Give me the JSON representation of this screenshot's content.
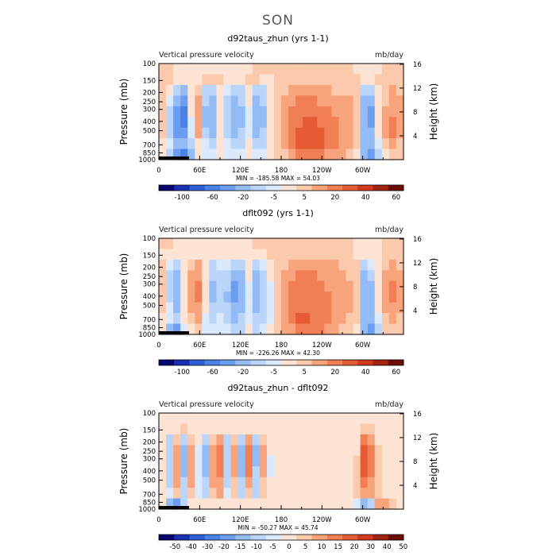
{
  "figure": {
    "super_title": "SON"
  },
  "chart_data": [
    {
      "type": "heatmap",
      "title": "d92taus_zhun (yrs 1-1)",
      "left_string": "Vertical pressure velocity",
      "right_string": "mb/day",
      "ylabel": "Pressure (mb)",
      "y2label": "Height (km)",
      "y_ticks": [
        100,
        150,
        200,
        250,
        300,
        400,
        500,
        700,
        850,
        1000
      ],
      "y2_ticks": [
        16,
        12,
        8,
        4
      ],
      "x_ticks": [
        "0",
        "60E",
        "120E",
        "180",
        "120W",
        "60W"
      ],
      "stats": "MIN = -185.58   MAX =  54.03",
      "colorbar_labels": [
        "-100",
        "-60",
        "-20",
        "-5",
        "5",
        "20",
        "40",
        "60"
      ],
      "colorbar_colors": [
        "#06066e",
        "#1b2fb4",
        "#2f5fd6",
        "#4b80e6",
        "#6b9ef0",
        "#93bcf6",
        "#b9d6fa",
        "#dbe9fc",
        "#fde3d3",
        "#fbc9ab",
        "#f7a47c",
        "#f17f55",
        "#e65a36",
        "#d13a1f",
        "#a3220f",
        "#6e0d05"
      ],
      "cells": [
        [
          1,
          1,
          0,
          0,
          0,
          0,
          0,
          0,
          0,
          0,
          0,
          0,
          0,
          1,
          1,
          1,
          1,
          1,
          1,
          1,
          1,
          1,
          1,
          1,
          1,
          1,
          1,
          0,
          0,
          0,
          0,
          1,
          1,
          1
        ],
        [
          1,
          1,
          0,
          0,
          0,
          0,
          1,
          1,
          1,
          0,
          0,
          0,
          1,
          1,
          0,
          0,
          1,
          1,
          1,
          1,
          1,
          1,
          1,
          1,
          1,
          1,
          1,
          1,
          0,
          0,
          1,
          1,
          1,
          1
        ],
        [
          1,
          0,
          -2,
          -3,
          0,
          1,
          -2,
          -2,
          0,
          -1,
          -2,
          -2,
          0,
          -2,
          -2,
          0,
          1,
          1,
          2,
          2,
          2,
          2,
          2,
          2,
          1,
          1,
          1,
          1,
          -2,
          -2,
          0,
          1,
          2,
          1
        ],
        [
          1,
          -1,
          -3,
          -4,
          0,
          2,
          -2,
          -3,
          0,
          -2,
          -3,
          -2,
          0,
          -3,
          -2,
          0,
          1,
          2,
          2,
          3,
          3,
          3,
          2,
          2,
          2,
          2,
          2,
          1,
          -3,
          -3,
          0,
          1,
          2,
          2
        ],
        [
          1,
          -2,
          -4,
          -5,
          0,
          2,
          -3,
          -3,
          0,
          -2,
          -3,
          -3,
          -1,
          -3,
          -3,
          0,
          1,
          2,
          3,
          3,
          3,
          3,
          3,
          3,
          2,
          2,
          2,
          1,
          -3,
          -4,
          0,
          2,
          2,
          2
        ],
        [
          1,
          -2,
          -4,
          -5,
          -1,
          2,
          -3,
          -3,
          0,
          -2,
          -3,
          -3,
          -1,
          -3,
          -3,
          0,
          1,
          2,
          3,
          3,
          4,
          4,
          3,
          3,
          3,
          2,
          2,
          1,
          -3,
          -4,
          0,
          2,
          3,
          2
        ],
        [
          1,
          -2,
          -4,
          -4,
          -1,
          2,
          -2,
          -3,
          0,
          -2,
          -3,
          -2,
          -1,
          -3,
          -2,
          0,
          1,
          2,
          3,
          4,
          4,
          4,
          4,
          3,
          3,
          2,
          2,
          1,
          -3,
          -3,
          0,
          2,
          3,
          2
        ],
        [
          0,
          -1,
          -3,
          -3,
          -2,
          0,
          -1,
          -2,
          0,
          -1,
          -2,
          -2,
          0,
          -2,
          -2,
          0,
          1,
          2,
          3,
          4,
          4,
          4,
          4,
          3,
          3,
          2,
          2,
          1,
          -3,
          -3,
          -1,
          1,
          2,
          1
        ],
        [
          0,
          -2,
          -4,
          -5,
          -3,
          0,
          -1,
          -1,
          0,
          -1,
          -1,
          -1,
          0,
          -1,
          -1,
          0,
          1,
          1,
          2,
          3,
          3,
          3,
          3,
          2,
          2,
          2,
          1,
          0,
          -3,
          -4,
          -2,
          0,
          1,
          1
        ]
      ]
    },
    {
      "type": "heatmap",
      "title": "dflt092 (yrs 1-1)",
      "left_string": "Vertical pressure velocity",
      "right_string": "mb/day",
      "ylabel": "Pressure (mb)",
      "y2label": "Height (km)",
      "y_ticks": [
        100,
        150,
        200,
        250,
        300,
        400,
        500,
        700,
        850,
        1000
      ],
      "y2_ticks": [
        16,
        12,
        8,
        4
      ],
      "x_ticks": [
        "0",
        "60E",
        "120E",
        "180",
        "120W",
        "60W"
      ],
      "stats": "MIN = -226.26   MAX =  42.30",
      "colorbar_labels": [
        "-100",
        "-60",
        "-20",
        "-5",
        "5",
        "20",
        "40",
        "60"
      ],
      "colorbar_colors": [
        "#06066e",
        "#1b2fb4",
        "#2f5fd6",
        "#4b80e6",
        "#6b9ef0",
        "#93bcf6",
        "#b9d6fa",
        "#dbe9fc",
        "#fde3d3",
        "#fbc9ab",
        "#f7a47c",
        "#f17f55",
        "#e65a36",
        "#d13a1f",
        "#a3220f",
        "#6e0d05"
      ],
      "cells": [
        [
          1,
          1,
          0,
          0,
          0,
          0,
          0,
          0,
          0,
          0,
          0,
          0,
          0,
          1,
          1,
          1,
          1,
          1,
          1,
          1,
          1,
          1,
          1,
          1,
          1,
          1,
          1,
          0,
          0,
          0,
          0,
          1,
          1,
          1
        ],
        [
          0,
          0,
          0,
          0,
          0,
          0,
          0,
          0,
          0,
          0,
          0,
          0,
          0,
          0,
          0,
          1,
          1,
          1,
          1,
          1,
          1,
          1,
          1,
          1,
          1,
          1,
          1,
          0,
          0,
          0,
          0,
          1,
          1,
          1
        ],
        [
          1,
          -1,
          -2,
          0,
          1,
          2,
          0,
          -2,
          -1,
          -1,
          -2,
          -2,
          0,
          -2,
          -1,
          0,
          1,
          1,
          2,
          2,
          2,
          2,
          2,
          2,
          2,
          1,
          1,
          1,
          -2,
          -1,
          0,
          1,
          2,
          1
        ],
        [
          1,
          -2,
          -3,
          0,
          2,
          2,
          0,
          -2,
          -2,
          -2,
          -3,
          -3,
          0,
          -3,
          -2,
          0,
          1,
          2,
          2,
          3,
          3,
          3,
          2,
          2,
          2,
          2,
          1,
          1,
          -3,
          -2,
          0,
          2,
          2,
          2
        ],
        [
          1,
          -2,
          -3,
          0,
          2,
          3,
          0,
          -3,
          -2,
          -2,
          -4,
          -3,
          -1,
          -3,
          -2,
          -1,
          1,
          2,
          3,
          3,
          3,
          3,
          3,
          2,
          2,
          2,
          2,
          1,
          -3,
          -3,
          0,
          2,
          3,
          2
        ],
        [
          1,
          -2,
          -3,
          0,
          2,
          3,
          0,
          -3,
          -2,
          -3,
          -4,
          -3,
          -1,
          -3,
          -2,
          -1,
          1,
          2,
          3,
          3,
          3,
          3,
          3,
          3,
          2,
          2,
          2,
          1,
          -3,
          -3,
          0,
          2,
          3,
          2
        ],
        [
          1,
          -1,
          -3,
          0,
          2,
          2,
          0,
          -2,
          -2,
          -2,
          -3,
          -3,
          -1,
          -3,
          -2,
          -1,
          1,
          2,
          3,
          3,
          3,
          3,
          3,
          3,
          2,
          2,
          2,
          1,
          -3,
          -3,
          0,
          2,
          2,
          2
        ],
        [
          0,
          -1,
          -2,
          0,
          1,
          2,
          -1,
          -2,
          -1,
          -2,
          -3,
          -2,
          -1,
          -2,
          -2,
          -1,
          1,
          2,
          3,
          4,
          4,
          3,
          3,
          3,
          2,
          2,
          1,
          1,
          -3,
          -3,
          -1,
          1,
          2,
          1
        ],
        [
          0,
          -3,
          -4,
          -1,
          0,
          1,
          -1,
          -1,
          -1,
          -1,
          -2,
          -2,
          0,
          -2,
          -1,
          0,
          1,
          2,
          2,
          3,
          3,
          3,
          3,
          2,
          2,
          1,
          1,
          0,
          -3,
          -4,
          -2,
          1,
          1,
          1
        ]
      ]
    },
    {
      "type": "heatmap",
      "title": "d92taus_zhun - dflt092",
      "left_string": "Vertical pressure velocity",
      "right_string": "mb/day",
      "ylabel": "Pressure (mb)",
      "y2label": "Height (km)",
      "y_ticks": [
        100,
        150,
        200,
        250,
        300,
        400,
        500,
        700,
        850,
        1000
      ],
      "y2_ticks": [
        16,
        12,
        8,
        4
      ],
      "x_ticks": [
        "0",
        "60E",
        "120E",
        "180",
        "120W",
        "60W"
      ],
      "stats": "MIN = -50.27   MAX =  45.74",
      "colorbar_labels": [
        "-50",
        "-40",
        "-30",
        "-20",
        "-15",
        "-10",
        "-5",
        "0",
        "5",
        "10",
        "15",
        "20",
        "30",
        "40",
        "50"
      ],
      "colorbar_colors": [
        "#06066e",
        "#1b2fb4",
        "#2f5fd6",
        "#4b80e6",
        "#6b9ef0",
        "#93bcf6",
        "#b9d6fa",
        "#dbe9fc",
        "#fde3d3",
        "#fbc9ab",
        "#f7a47c",
        "#f17f55",
        "#e65a36",
        "#d13a1f",
        "#a3220f",
        "#6e0d05"
      ],
      "cells": [
        [
          0,
          0,
          0,
          0,
          0,
          0,
          0,
          0,
          0,
          0,
          0,
          0,
          0,
          0,
          0,
          0,
          0,
          0,
          0,
          0,
          0,
          0,
          0,
          0,
          0,
          0,
          0,
          0,
          0,
          0,
          0,
          0,
          0,
          0
        ],
        [
          0,
          0,
          0,
          1,
          0,
          0,
          0,
          0,
          0,
          0,
          0,
          0,
          0,
          0,
          0,
          0,
          0,
          0,
          0,
          0,
          0,
          0,
          0,
          0,
          0,
          0,
          0,
          0,
          1,
          1,
          0,
          0,
          0,
          0
        ],
        [
          0,
          -2,
          1,
          -2,
          1,
          0,
          -2,
          1,
          2,
          -2,
          1,
          -2,
          2,
          -2,
          1,
          0,
          0,
          0,
          0,
          0,
          0,
          0,
          0,
          0,
          0,
          0,
          0,
          0,
          3,
          2,
          0,
          0,
          0,
          0
        ],
        [
          0,
          -2,
          2,
          -3,
          2,
          -1,
          -3,
          2,
          3,
          -2,
          2,
          -3,
          3,
          -3,
          2,
          0,
          0,
          0,
          0,
          0,
          0,
          0,
          0,
          0,
          0,
          0,
          0,
          0,
          4,
          3,
          1,
          0,
          0,
          0
        ],
        [
          0,
          -2,
          2,
          -3,
          2,
          -1,
          -3,
          2,
          3,
          -2,
          2,
          -3,
          3,
          -3,
          2,
          -1,
          0,
          0,
          0,
          0,
          0,
          0,
          0,
          0,
          0,
          0,
          0,
          1,
          4,
          3,
          1,
          0,
          0,
          0
        ],
        [
          0,
          -2,
          2,
          -3,
          2,
          -1,
          -3,
          2,
          3,
          -2,
          2,
          -3,
          3,
          -2,
          2,
          -1,
          0,
          0,
          0,
          0,
          0,
          0,
          0,
          0,
          0,
          0,
          0,
          1,
          4,
          3,
          1,
          0,
          0,
          0
        ],
        [
          0,
          -2,
          2,
          -2,
          2,
          -1,
          -2,
          2,
          2,
          -2,
          1,
          -2,
          2,
          -2,
          1,
          0,
          0,
          0,
          0,
          0,
          0,
          0,
          0,
          0,
          0,
          0,
          0,
          1,
          3,
          2,
          1,
          0,
          0,
          0
        ],
        [
          0,
          -1,
          1,
          -2,
          1,
          -1,
          -2,
          1,
          2,
          -1,
          1,
          -2,
          1,
          -2,
          1,
          0,
          0,
          0,
          0,
          0,
          0,
          0,
          0,
          0,
          0,
          0,
          0,
          1,
          2,
          2,
          1,
          0,
          0,
          0
        ],
        [
          0,
          -3,
          -4,
          -2,
          0,
          0,
          0,
          0,
          0,
          0,
          0,
          0,
          0,
          0,
          0,
          0,
          0,
          0,
          0,
          0,
          0,
          0,
          0,
          0,
          0,
          0,
          0,
          -1,
          -3,
          -2,
          2,
          2,
          1,
          0
        ]
      ]
    }
  ]
}
